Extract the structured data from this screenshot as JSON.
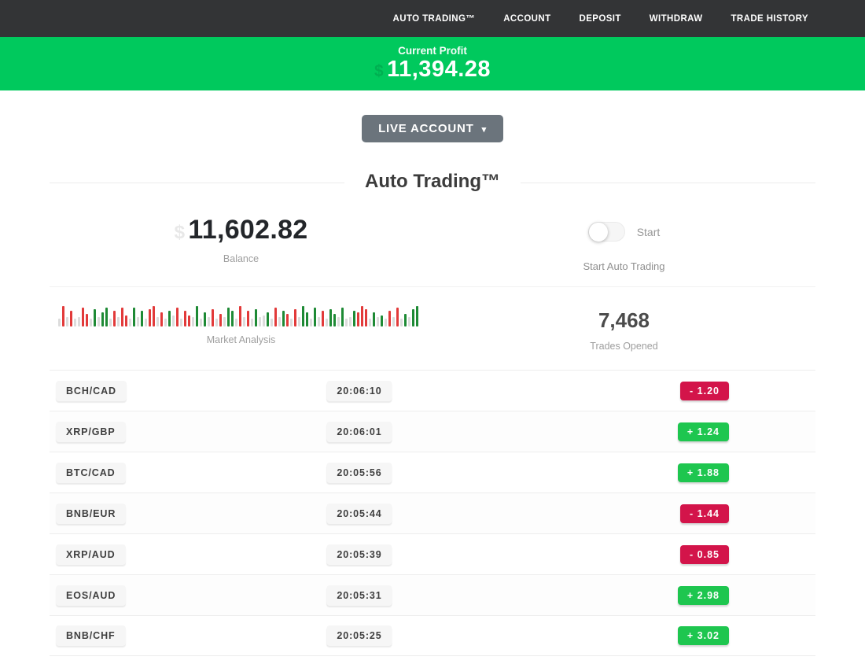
{
  "nav": {
    "items": [
      "AUTO TRADING™",
      "ACCOUNT",
      "DEPOSIT",
      "WITHDRAW",
      "TRADE HISTORY"
    ]
  },
  "banner": {
    "label": "Current Profit",
    "currency_ghost": "$",
    "value": "11,394.28"
  },
  "account_selector": {
    "label": "LIVE ACCOUNT",
    "caret": "▾"
  },
  "section": {
    "title": "Auto Trading™"
  },
  "stats": {
    "balance": {
      "currency_ghost": "$",
      "value": "11,602.82",
      "label": "Balance"
    },
    "auto_trading": {
      "toggle_label": "Start",
      "caption": "Start Auto Trading",
      "state": "off"
    },
    "market_analysis": {
      "label": "Market Analysis",
      "bar_colors": {
        "n": "#dcdcdc",
        "r": "#e23a3a",
        "g": "#1e8a35"
      },
      "bars": [
        [
          "n",
          10
        ],
        [
          "r",
          26
        ],
        [
          "n",
          12
        ],
        [
          "r",
          20
        ],
        [
          "n",
          10
        ],
        [
          "n",
          12
        ],
        [
          "r",
          24
        ],
        [
          "r",
          16
        ],
        [
          "n",
          10
        ],
        [
          "g",
          22
        ],
        [
          "n",
          12
        ],
        [
          "g",
          18
        ],
        [
          "g",
          24
        ],
        [
          "n",
          10
        ],
        [
          "r",
          20
        ],
        [
          "n",
          12
        ],
        [
          "r",
          24
        ],
        [
          "r",
          14
        ],
        [
          "n",
          10
        ],
        [
          "g",
          24
        ],
        [
          "n",
          12
        ],
        [
          "g",
          20
        ],
        [
          "n",
          10
        ],
        [
          "r",
          22
        ],
        [
          "r",
          26
        ],
        [
          "n",
          12
        ],
        [
          "r",
          18
        ],
        [
          "n",
          10
        ],
        [
          "g",
          20
        ],
        [
          "n",
          14
        ],
        [
          "r",
          24
        ],
        [
          "n",
          10
        ],
        [
          "r",
          20
        ],
        [
          "r",
          14
        ],
        [
          "n",
          12
        ],
        [
          "g",
          26
        ],
        [
          "n",
          10
        ],
        [
          "g",
          18
        ],
        [
          "n",
          12
        ],
        [
          "r",
          22
        ],
        [
          "n",
          10
        ],
        [
          "r",
          16
        ],
        [
          "n",
          12
        ],
        [
          "g",
          24
        ],
        [
          "g",
          20
        ],
        [
          "n",
          10
        ],
        [
          "r",
          26
        ],
        [
          "n",
          12
        ],
        [
          "r",
          20
        ],
        [
          "n",
          10
        ],
        [
          "g",
          22
        ],
        [
          "n",
          12
        ],
        [
          "n",
          14
        ],
        [
          "g",
          18
        ],
        [
          "n",
          10
        ],
        [
          "r",
          24
        ],
        [
          "n",
          12
        ],
        [
          "g",
          20
        ],
        [
          "r",
          16
        ],
        [
          "n",
          10
        ],
        [
          "r",
          22
        ],
        [
          "n",
          12
        ],
        [
          "g",
          26
        ],
        [
          "g",
          18
        ],
        [
          "n",
          10
        ],
        [
          "g",
          24
        ],
        [
          "n",
          12
        ],
        [
          "r",
          20
        ],
        [
          "n",
          10
        ],
        [
          "g",
          22
        ],
        [
          "g",
          16
        ],
        [
          "n",
          12
        ],
        [
          "g",
          24
        ],
        [
          "n",
          10
        ],
        [
          "n",
          12
        ],
        [
          "g",
          20
        ],
        [
          "r",
          18
        ],
        [
          "r",
          26
        ],
        [
          "r",
          22
        ],
        [
          "n",
          10
        ],
        [
          "g",
          18
        ],
        [
          "n",
          12
        ],
        [
          "g",
          14
        ],
        [
          "n",
          10
        ],
        [
          "r",
          20
        ],
        [
          "n",
          12
        ],
        [
          "r",
          24
        ],
        [
          "n",
          10
        ],
        [
          "g",
          16
        ],
        [
          "n",
          12
        ],
        [
          "g",
          22
        ],
        [
          "g",
          26
        ]
      ]
    },
    "trades_opened": {
      "value": "7,468",
      "label": "Trades Opened"
    }
  },
  "trades": [
    {
      "pair": "BCH/CAD",
      "time": "20:06:10",
      "result": "-  1.20",
      "direction": "loss"
    },
    {
      "pair": "XRP/GBP",
      "time": "20:06:01",
      "result": "+  1.24",
      "direction": "gain"
    },
    {
      "pair": "BTC/CAD",
      "time": "20:05:56",
      "result": "+  1.88",
      "direction": "gain"
    },
    {
      "pair": "BNB/EUR",
      "time": "20:05:44",
      "result": "-  1.44",
      "direction": "loss"
    },
    {
      "pair": "XRP/AUD",
      "time": "20:05:39",
      "result": "-  0.85",
      "direction": "loss"
    },
    {
      "pair": "EOS/AUD",
      "time": "20:05:31",
      "result": "+  2.98",
      "direction": "gain"
    },
    {
      "pair": "BNB/CHF",
      "time": "20:05:25",
      "result": "+  3.02",
      "direction": "gain"
    }
  ],
  "colors": {
    "banner_green": "#00c95d",
    "gain_badge": "#1ec64f",
    "loss_badge": "#d3144a",
    "nav_bg": "#333436",
    "button_gray": "#6b747c"
  }
}
